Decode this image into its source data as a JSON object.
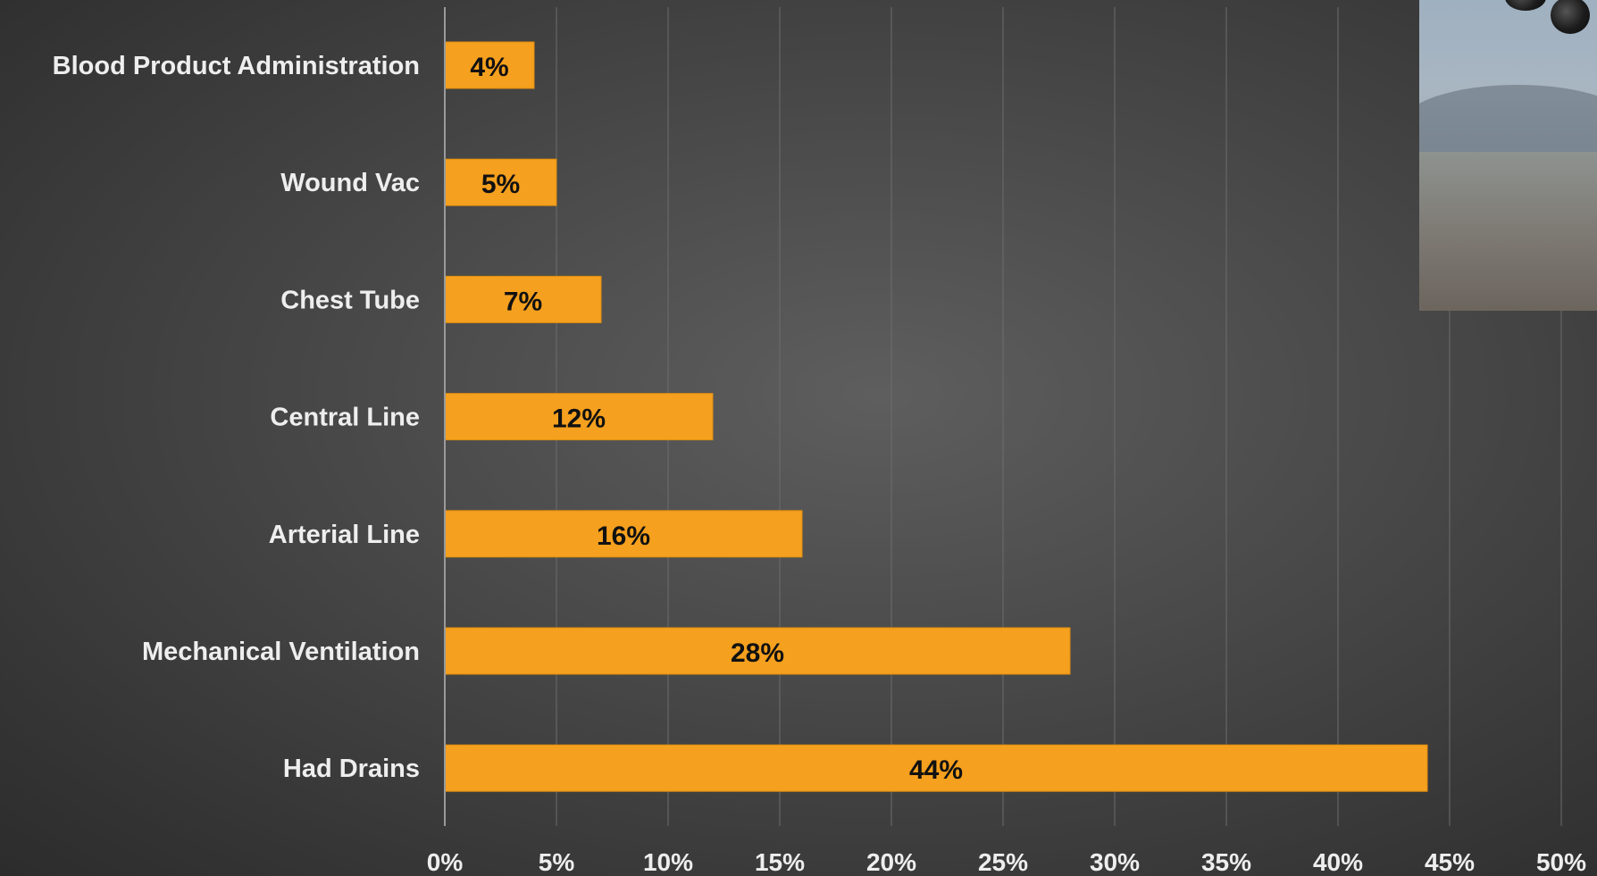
{
  "colors": {
    "bar": "#f5a01e",
    "bar_edge": "#e08e10",
    "label_text": "#eeeeee",
    "data_label_text": "#111111",
    "gridline": "#6c6c6c",
    "axis_line": "#9a9a9a"
  },
  "photo": {
    "icon": "aircraft-engine-photo"
  },
  "chart_data": {
    "type": "bar",
    "orientation": "horizontal",
    "categories": [
      "Blood Product Administration",
      "Wound Vac",
      "Chest Tube",
      "Central Line",
      "Arterial Line",
      "Mechanical Ventilation",
      "Had Drains"
    ],
    "values": [
      4,
      5,
      7,
      12,
      16,
      28,
      44
    ],
    "data_labels": [
      "4%",
      "5%",
      "7%",
      "12%",
      "16%",
      "28%",
      "44%"
    ],
    "xlim": [
      0,
      50
    ],
    "xticks": [
      0,
      5,
      10,
      15,
      20,
      25,
      30,
      35,
      40,
      45,
      50
    ],
    "xtick_labels": [
      "0%",
      "5%",
      "10%",
      "15%",
      "20%",
      "25%",
      "30%",
      "35%",
      "40%",
      "45%",
      "50%"
    ],
    "grid": true,
    "legend": "none",
    "title": "",
    "xlabel": "",
    "ylabel": ""
  }
}
